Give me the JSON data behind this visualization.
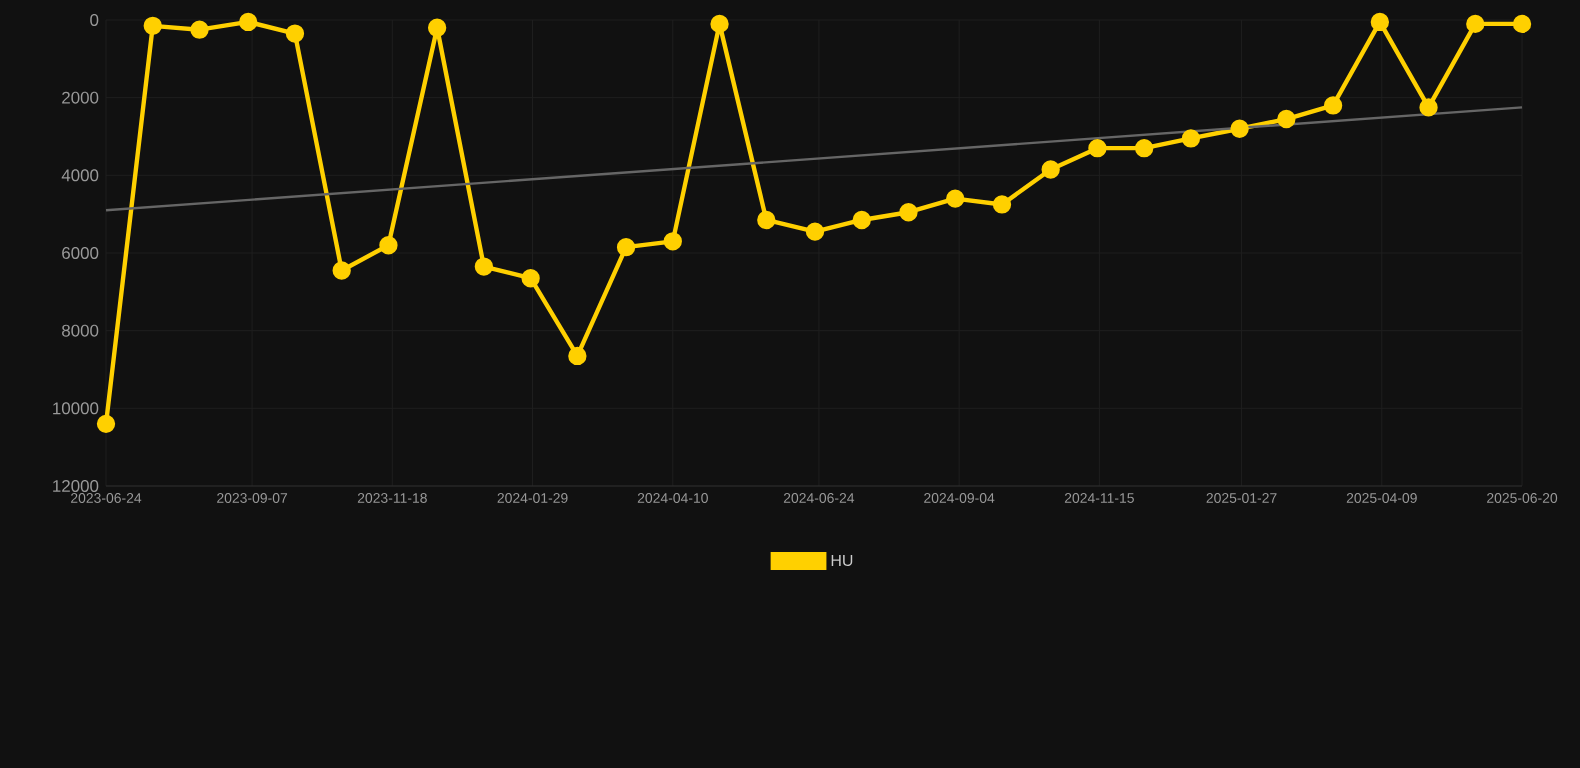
{
  "chart_data": {
    "type": "line",
    "ylim": [
      12000,
      0
    ],
    "yticks": [
      0,
      2000,
      4000,
      6000,
      8000,
      10000,
      12000
    ],
    "xlim": [
      "2023-06-24",
      "2025-06-20"
    ],
    "xticks": [
      "2023-06-24",
      "2023-09-07",
      "2023-11-18",
      "2024-01-29",
      "2024-04-10",
      "2024-06-24",
      "2024-09-04",
      "2024-11-15",
      "2025-01-27",
      "2025-04-09",
      "2025-06-20"
    ],
    "grid": true,
    "legend": "bottom",
    "marker": "circle",
    "series": [
      {
        "name": "HU",
        "color": "#ffd000",
        "x": [
          "2023-06-24",
          "2023-07-18",
          "2023-08-11",
          "2023-09-05",
          "2023-09-29",
          "2023-10-23",
          "2023-11-16",
          "2023-12-11",
          "2024-01-04",
          "2024-01-28",
          "2024-02-21",
          "2024-03-17",
          "2024-04-10",
          "2024-05-04",
          "2024-05-28",
          "2024-06-22",
          "2024-07-16",
          "2024-08-09",
          "2024-09-02",
          "2024-09-26",
          "2024-10-21",
          "2024-11-14",
          "2024-12-08",
          "2025-01-01",
          "2025-01-26",
          "2025-02-19",
          "2025-03-15",
          "2025-04-08",
          "2025-05-03",
          "2025-05-27",
          "2025-06-20"
        ],
        "values": [
          10400,
          150,
          250,
          50,
          350,
          6450,
          5800,
          200,
          6350,
          6650,
          8650,
          5850,
          5700,
          100,
          5150,
          5450,
          5150,
          4950,
          4600,
          4750,
          3850,
          3300,
          3300,
          3050,
          2800,
          2550,
          2200,
          50,
          2250,
          100,
          100
        ]
      },
      {
        "type": "line",
        "marker": "none",
        "color": "#666666",
        "x": [
          "2023-06-24",
          "2025-06-20"
        ],
        "values": [
          4900,
          2250
        ]
      }
    ]
  }
}
